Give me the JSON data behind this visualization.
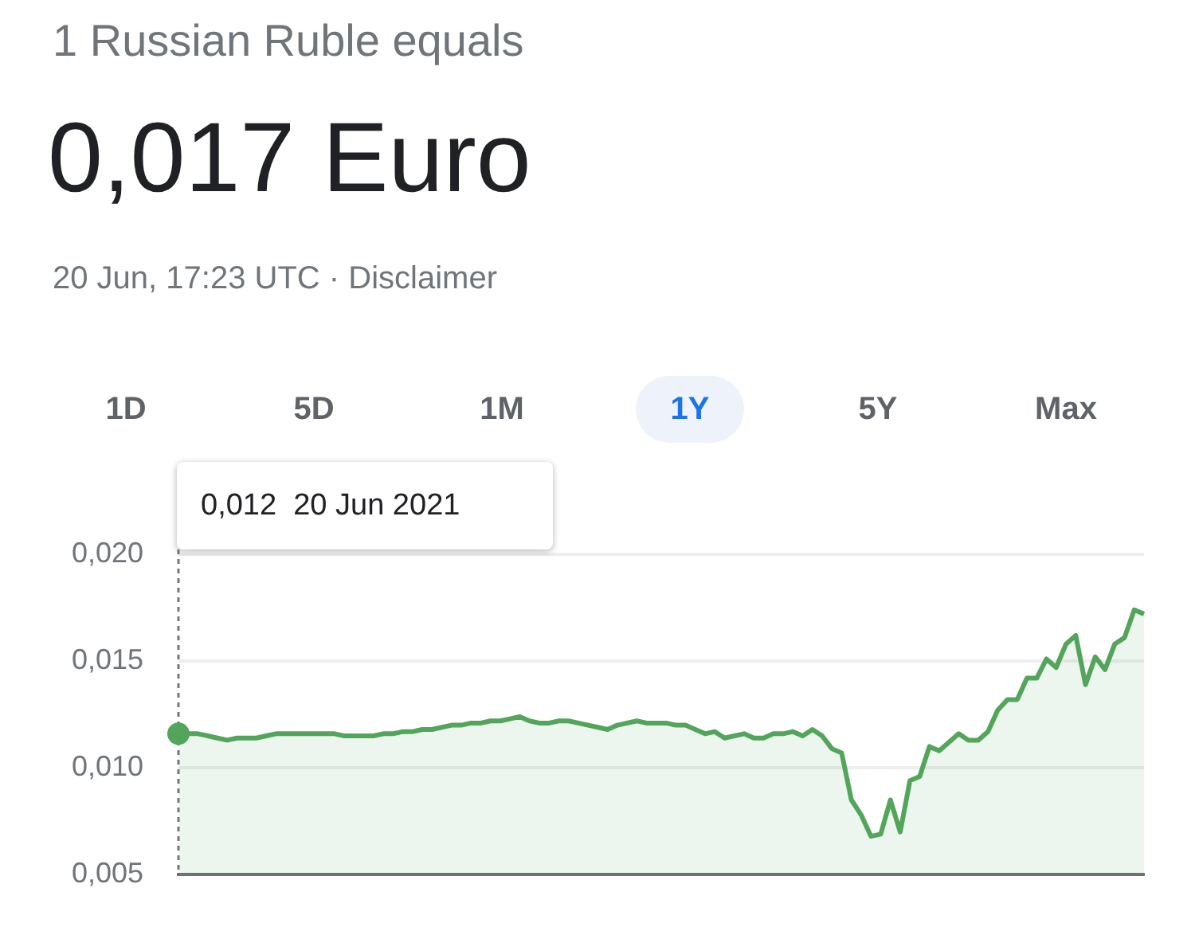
{
  "chart_data": {
    "type": "area",
    "title": "1 Russian Ruble equals",
    "subtitle": "0,017 Euro",
    "annotations": [
      "20 Jun, 17:23 UTC · Disclaimer",
      "1D",
      "5D",
      "1M",
      "1Y",
      "5Y",
      "Max",
      "0,012  20 Jun 2021"
    ],
    "categories": [
      null,
      null,
      null,
      null,
      null,
      null,
      null,
      null,
      null,
      null,
      null,
      null,
      null,
      null,
      null,
      null,
      null,
      null,
      null,
      null,
      null,
      null,
      null,
      null,
      null,
      null,
      null,
      null,
      null,
      null,
      null,
      null,
      null,
      null,
      null,
      null,
      null,
      null,
      null,
      null,
      null,
      null,
      null,
      null,
      null,
      null,
      null,
      null,
      null,
      null,
      null,
      null,
      null,
      null,
      null,
      null,
      null,
      null,
      null,
      null,
      null,
      null,
      null,
      null,
      null,
      null,
      null,
      null,
      null,
      null,
      null,
      null,
      null,
      null,
      null,
      null,
      null,
      null,
      null,
      null,
      null,
      null,
      null,
      null,
      null,
      null,
      null,
      null,
      null,
      null,
      null,
      null,
      null,
      null,
      null,
      null,
      null,
      null,
      null,
      null
    ],
    "series": [
      {
        "color": "#52a55a",
        "values": [
          0.0116,
          0.0116,
          0.0116,
          0.0115,
          0.0114,
          0.0113,
          0.0114,
          0.0114,
          0.0114,
          0.0115,
          0.0116,
          0.0116,
          0.0116,
          0.0116,
          0.0116,
          0.0116,
          0.0116,
          0.0115,
          0.0115,
          0.0115,
          0.0115,
          0.0116,
          0.0116,
          0.0117,
          0.0117,
          0.0118,
          0.0118,
          0.0119,
          0.012,
          0.012,
          0.0121,
          0.0121,
          0.0122,
          0.0122,
          0.0123,
          0.0124,
          0.0122,
          0.0121,
          0.0121,
          0.0122,
          0.0122,
          0.0121,
          0.012,
          0.0119,
          0.0118,
          0.012,
          0.0121,
          0.0122,
          0.0121,
          0.0121,
          0.0121,
          0.012,
          0.012,
          0.0118,
          0.0116,
          0.0117,
          0.0114,
          0.0115,
          0.0116,
          0.0114,
          0.0114,
          0.0116,
          0.0116,
          0.0117,
          0.0115,
          0.0118,
          0.0115,
          0.0109,
          0.0107,
          0.0085,
          0.0078,
          0.0068,
          0.0069,
          0.0085,
          0.007,
          0.0094,
          0.0096,
          0.011,
          0.0108,
          0.0112,
          0.0116,
          0.0113,
          0.0113,
          0.0117,
          0.0127,
          0.0132,
          0.0132,
          0.0142,
          0.0142,
          0.0151,
          0.0147,
          0.0158,
          0.0162,
          0.0139,
          0.0152,
          0.0146,
          0.0158,
          0.0161,
          0.0174,
          0.0172
        ]
      }
    ],
    "ylim": [
      0.005,
      0.02
    ],
    "yticks": [
      {
        "value": 0.005,
        "label": "0,005"
      },
      {
        "value": 0.01,
        "label": "0,010"
      },
      {
        "value": 0.015,
        "label": "0,015"
      },
      {
        "value": 0.02,
        "label": "0,020"
      }
    ],
    "grid": "y",
    "legend": false,
    "marker": "none",
    "line_style": "solid"
  }
}
